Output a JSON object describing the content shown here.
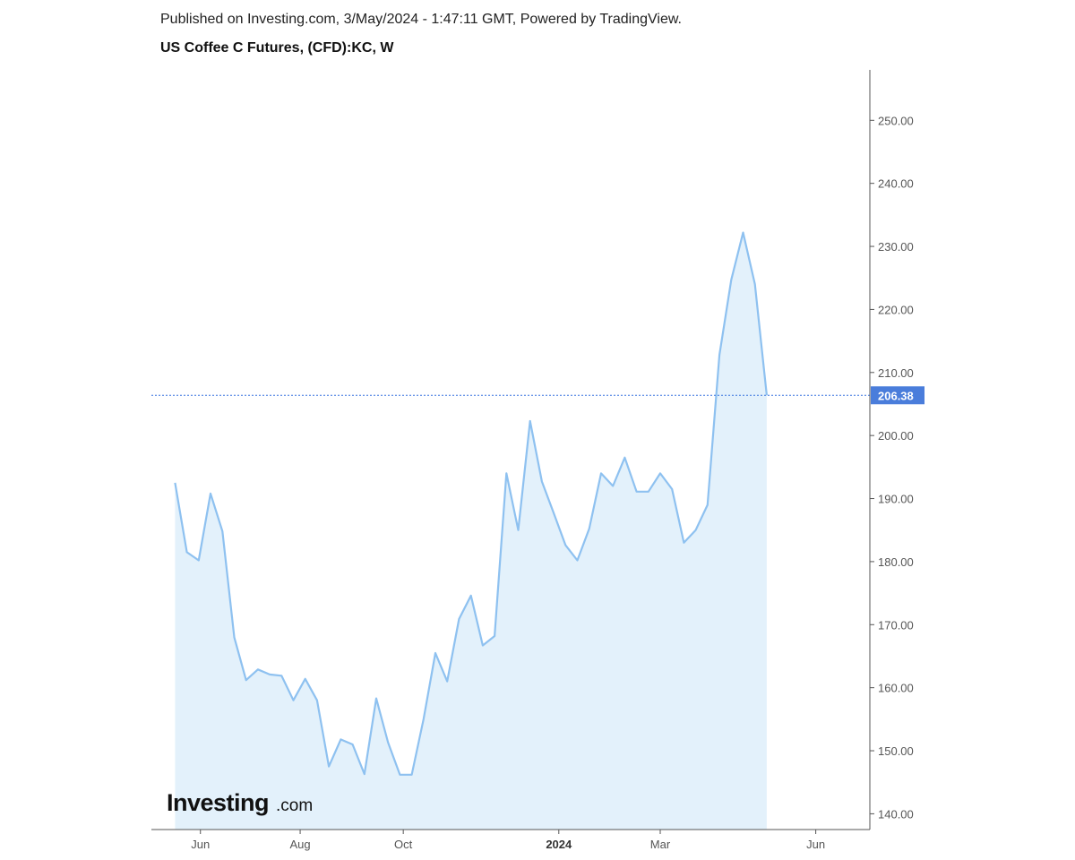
{
  "header": {
    "published": "Published on Investing.com, 3/May/2024 - 1:47:11 GMT, Powered by TradingView.",
    "title": "US Coffee C Futures, (CFD):KC, W"
  },
  "logo": {
    "main": "Investing",
    "suffix": ".com"
  },
  "chart_data": {
    "type": "area",
    "title": "US Coffee C Futures, (CFD):KC, W",
    "x": [
      "2023-05-19",
      "2023-05-26",
      "2023-06-02",
      "2023-06-09",
      "2023-06-16",
      "2023-06-23",
      "2023-06-30",
      "2023-07-07",
      "2023-07-14",
      "2023-07-21",
      "2023-07-28",
      "2023-08-04",
      "2023-08-11",
      "2023-08-18",
      "2023-08-25",
      "2023-09-01",
      "2023-09-08",
      "2023-09-15",
      "2023-09-22",
      "2023-09-29",
      "2023-10-06",
      "2023-10-13",
      "2023-10-20",
      "2023-10-27",
      "2023-11-03",
      "2023-11-10",
      "2023-11-17",
      "2023-11-24",
      "2023-12-01",
      "2023-12-08",
      "2023-12-15",
      "2023-12-22",
      "2023-12-29",
      "2024-01-05",
      "2024-01-12",
      "2024-01-19",
      "2024-01-26",
      "2024-02-02",
      "2024-02-09",
      "2024-02-16",
      "2024-02-23",
      "2024-03-01",
      "2024-03-08",
      "2024-03-15",
      "2024-03-22",
      "2024-03-29",
      "2024-04-05",
      "2024-04-12",
      "2024-04-19",
      "2024-04-26",
      "2024-05-03"
    ],
    "series": [
      {
        "values": [
          192.5,
          181.5,
          180.2,
          190.8,
          184.8,
          168.0,
          161.2,
          162.9,
          162.1,
          161.9,
          158.0,
          161.4,
          158.0,
          147.5,
          151.8,
          151.0,
          146.3,
          158.3,
          151.3,
          146.2,
          146.2,
          155.0,
          165.5,
          161.0,
          170.9,
          174.6,
          166.7,
          168.2,
          194.0,
          185.0,
          202.3,
          192.7,
          187.7,
          182.6,
          180.2,
          185.2,
          194.0,
          192.0,
          196.5,
          191.1,
          191.1,
          194.0,
          191.5,
          183.0,
          185.0,
          189.0,
          212.8,
          224.7,
          232.2,
          224.0,
          206.38
        ]
      }
    ],
    "ylim": [
      137.5,
      258.0
    ],
    "yticks": [
      "140.00",
      "150.00",
      "160.00",
      "170.00",
      "180.00",
      "190.00",
      "200.00",
      "210.00",
      "220.00",
      "230.00",
      "240.00",
      "250.00"
    ],
    "xticks": [
      {
        "label": "Jun",
        "date": "2023-06-03"
      },
      {
        "label": "Aug",
        "date": "2023-08-01"
      },
      {
        "label": "Oct",
        "date": "2023-10-01"
      },
      {
        "label": "2024",
        "date": "2024-01-01",
        "bold": true
      },
      {
        "label": "Mar",
        "date": "2024-03-01"
      },
      {
        "label": "Jun",
        "date": "2024-06-01"
      }
    ],
    "xlim": [
      "2023-05-05",
      "2024-07-03"
    ],
    "last_value": 206.38,
    "last_value_label": "206.38",
    "colors": {
      "line": "#8ec1f0",
      "fill": "#e3f1fb",
      "price_line": "#3d77e0",
      "price_tag": "#4a7ddb",
      "axis": "#555555"
    }
  }
}
